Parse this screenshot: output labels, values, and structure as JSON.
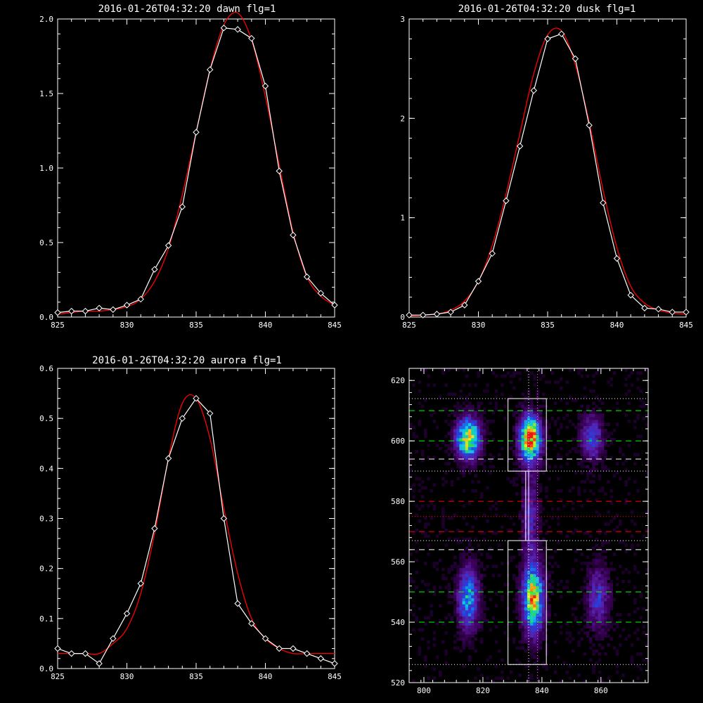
{
  "colors": {
    "background": "#000000",
    "axes": "#ffffff",
    "data_line": "#ffffff",
    "fit_line": "#ff0000"
  },
  "chart_data": [
    {
      "type": "line",
      "title": "2016-01-26T04:32:20 dawn flg=1",
      "xlim": [
        825,
        845
      ],
      "ylim": [
        0,
        2.0
      ],
      "xticks": [
        "825",
        "830",
        "835",
        "840",
        "845"
      ],
      "yticks": [
        "0.0",
        "0.5",
        "1.0",
        "1.5",
        "2.0"
      ],
      "series": [
        {
          "values": [
            [
              825,
              0.03
            ],
            [
              826,
              0.04
            ],
            [
              827,
              0.04
            ],
            [
              828,
              0.06
            ],
            [
              829,
              0.05
            ],
            [
              830,
              0.08
            ],
            [
              831,
              0.12
            ],
            [
              832,
              0.32
            ],
            [
              833,
              0.48
            ],
            [
              834,
              0.74
            ],
            [
              835,
              1.24
            ],
            [
              836,
              1.66
            ],
            [
              837,
              1.94
            ],
            [
              838,
              1.93
            ],
            [
              839,
              1.87
            ],
            [
              840,
              1.55
            ],
            [
              841,
              0.98
            ],
            [
              842,
              0.55
            ],
            [
              843,
              0.27
            ],
            [
              844,
              0.16
            ],
            [
              845,
              0.08
            ]
          ]
        },
        {
          "values": [
            [
              825,
              0.02
            ],
            [
              826,
              0.03
            ],
            [
              827,
              0.04
            ],
            [
              828,
              0.04
            ],
            [
              829,
              0.05
            ],
            [
              830,
              0.07
            ],
            [
              831,
              0.12
            ],
            [
              832,
              0.24
            ],
            [
              833,
              0.46
            ],
            [
              834,
              0.82
            ],
            [
              835,
              1.24
            ],
            [
              836,
              1.66
            ],
            [
              837,
              1.96
            ],
            [
              838,
              2.04
            ],
            [
              839,
              1.86
            ],
            [
              840,
              1.48
            ],
            [
              841,
              1.02
            ],
            [
              842,
              0.57
            ],
            [
              843,
              0.27
            ],
            [
              844,
              0.14
            ],
            [
              845,
              0.08
            ]
          ]
        }
      ]
    },
    {
      "type": "line",
      "title": "2016-01-26T04:32:20 dusk flg=1",
      "xlim": [
        825,
        845
      ],
      "ylim": [
        0,
        3
      ],
      "xticks": [
        "825",
        "830",
        "835",
        "840",
        "845"
      ],
      "yticks": [
        "0",
        "1",
        "2",
        "3"
      ],
      "series": [
        {
          "values": [
            [
              825,
              0.02
            ],
            [
              826,
              0.02
            ],
            [
              827,
              0.03
            ],
            [
              828,
              0.05
            ],
            [
              829,
              0.12
            ],
            [
              830,
              0.36
            ],
            [
              831,
              0.64
            ],
            [
              832,
              1.17
            ],
            [
              833,
              1.72
            ],
            [
              834,
              2.28
            ],
            [
              835,
              2.8
            ],
            [
              836,
              2.85
            ],
            [
              837,
              2.6
            ],
            [
              838,
              1.93
            ],
            [
              839,
              1.15
            ],
            [
              840,
              0.59
            ],
            [
              841,
              0.22
            ],
            [
              842,
              0.09
            ],
            [
              843,
              0.08
            ],
            [
              844,
              0.05
            ],
            [
              845,
              0.05
            ]
          ]
        },
        {
          "values": [
            [
              825,
              0.01
            ],
            [
              826,
              0.02
            ],
            [
              827,
              0.03
            ],
            [
              828,
              0.07
            ],
            [
              829,
              0.16
            ],
            [
              830,
              0.36
            ],
            [
              831,
              0.72
            ],
            [
              832,
              1.24
            ],
            [
              833,
              1.85
            ],
            [
              834,
              2.45
            ],
            [
              835,
              2.84
            ],
            [
              836,
              2.88
            ],
            [
              837,
              2.54
            ],
            [
              838,
              1.96
            ],
            [
              839,
              1.28
            ],
            [
              840,
              0.7
            ],
            [
              841,
              0.31
            ],
            [
              842,
              0.14
            ],
            [
              843,
              0.07
            ],
            [
              844,
              0.04
            ],
            [
              845,
              0.03
            ]
          ]
        }
      ]
    },
    {
      "type": "line",
      "title": "2016-01-26T04:32:20 aurora flg=1",
      "xlim": [
        825,
        845
      ],
      "ylim": [
        0,
        0.6
      ],
      "xticks": [
        "825",
        "830",
        "835",
        "840",
        "845"
      ],
      "yticks": [
        "0.0",
        "0.1",
        "0.2",
        "0.3",
        "0.4",
        "0.5",
        "0.6"
      ],
      "series": [
        {
          "values": [
            [
              825,
              0.04
            ],
            [
              826,
              0.03
            ],
            [
              827,
              0.03
            ],
            [
              828,
              0.01
            ],
            [
              829,
              0.06
            ],
            [
              830,
              0.11
            ],
            [
              831,
              0.17
            ],
            [
              832,
              0.28
            ],
            [
              833,
              0.42
            ],
            [
              834,
              0.5
            ],
            [
              835,
              0.54
            ],
            [
              836,
              0.51
            ],
            [
              837,
              0.3
            ],
            [
              838,
              0.13
            ],
            [
              839,
              0.09
            ],
            [
              840,
              0.06
            ],
            [
              841,
              0.04
            ],
            [
              842,
              0.04
            ],
            [
              843,
              0.03
            ],
            [
              844,
              0.02
            ],
            [
              845,
              0.01
            ]
          ]
        },
        {
          "values": [
            [
              825,
              0.03
            ],
            [
              826,
              0.03
            ],
            [
              827,
              0.03
            ],
            [
              828,
              0.03
            ],
            [
              829,
              0.05
            ],
            [
              830,
              0.08
            ],
            [
              831,
              0.15
            ],
            [
              832,
              0.27
            ],
            [
              833,
              0.42
            ],
            [
              834,
              0.53
            ],
            [
              835,
              0.54
            ],
            [
              836,
              0.46
            ],
            [
              837,
              0.32
            ],
            [
              838,
              0.19
            ],
            [
              839,
              0.1
            ],
            [
              840,
              0.06
            ],
            [
              841,
              0.04
            ],
            [
              842,
              0.03
            ],
            [
              843,
              0.03
            ],
            [
              844,
              0.03
            ],
            [
              845,
              0.03
            ]
          ]
        }
      ]
    },
    {
      "type": "heatmap",
      "title": "",
      "xlim": [
        795,
        876
      ],
      "ylim": [
        520,
        624
      ],
      "xticks": [
        "800",
        "820",
        "840",
        "860"
      ],
      "yticks": [
        "520",
        "540",
        "560",
        "580",
        "600",
        "620"
      ],
      "emission_blobs": [
        {
          "x": 815,
          "y": 601,
          "sx": 2.6,
          "sy": 4.5,
          "peak": 0.85
        },
        {
          "x": 836,
          "y": 601,
          "sx": 2.4,
          "sy": 5.0,
          "peak": 1.0
        },
        {
          "x": 815,
          "y": 548,
          "sx": 2.4,
          "sy": 7.0,
          "peak": 0.5
        },
        {
          "x": 837,
          "y": 548,
          "sx": 2.3,
          "sy": 7.5,
          "peak": 0.85
        },
        {
          "x": 836,
          "y": 575,
          "sx": 1.8,
          "sy": 9.0,
          "peak": 0.28
        },
        {
          "x": 857,
          "y": 601,
          "sx": 2.5,
          "sy": 5.0,
          "peak": 0.35
        },
        {
          "x": 859,
          "y": 548,
          "sx": 2.5,
          "sy": 7.0,
          "peak": 0.3
        }
      ],
      "boxes": [
        {
          "x": [
            828.5,
            841.5
          ],
          "y": [
            590,
            614
          ]
        },
        {
          "x": [
            828.5,
            841.5
          ],
          "y": [
            526,
            567
          ]
        }
      ],
      "connector_x": [
        834.5,
        835.5
      ],
      "vertical_dotted_lines": [
        {
          "x": 835.5,
          "color": "#ffffff"
        },
        {
          "x": 838.5,
          "color": "#ff60ff"
        }
      ],
      "horizontal_lines": [
        {
          "y": 614,
          "color": "#ffffff",
          "style": "dotted"
        },
        {
          "y": 610,
          "color": "#00ff00",
          "style": "dashed"
        },
        {
          "y": 600,
          "color": "#00ff00",
          "style": "dashed"
        },
        {
          "y": 594,
          "color": "#ffffff",
          "style": "dashed"
        },
        {
          "y": 590,
          "color": "#ffffff",
          "style": "dotted"
        },
        {
          "y": 580,
          "color": "#ff0000",
          "style": "dashed"
        },
        {
          "y": 575,
          "color": "#ff0000",
          "style": "dotted"
        },
        {
          "y": 570,
          "color": "#ff0000",
          "style": "dashed"
        },
        {
          "y": 567,
          "color": "#ffffff",
          "style": "dotted"
        },
        {
          "y": 564,
          "color": "#ffffff",
          "style": "dashed"
        },
        {
          "y": 550,
          "color": "#00ff00",
          "style": "dashed"
        },
        {
          "y": 540,
          "color": "#00ff00",
          "style": "dashed"
        },
        {
          "y": 526,
          "color": "#ffffff",
          "style": "dotted"
        }
      ]
    }
  ]
}
